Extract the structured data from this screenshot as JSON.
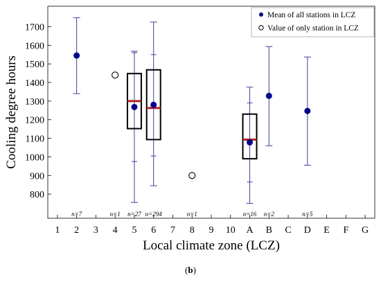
{
  "caption": {
    "prefix": "(",
    "label": "b",
    "suffix": ")"
  },
  "chart_data": {
    "type": "boxplot",
    "ylabel": "Cooling degree hours",
    "xlabel": "Local climate zone (LCZ)",
    "categories": [
      "1",
      "2",
      "3",
      "4",
      "5",
      "6",
      "7",
      "8",
      "9",
      "10",
      "A",
      "B",
      "C",
      "D",
      "E",
      "F",
      "G"
    ],
    "ylim": [
      670,
      1810
    ],
    "yticks": [
      800,
      900,
      1000,
      1100,
      1200,
      1300,
      1400,
      1500,
      1600,
      1700
    ],
    "legend": {
      "position": "top-right",
      "entries": [
        {
          "marker": "filled-circle",
          "label": "Mean of all stations in LCZ"
        },
        {
          "marker": "open-circle",
          "label": "Value of only station in LCZ"
        }
      ]
    },
    "colors": {
      "mean": "#00008b",
      "whisker": "#3f3f9f",
      "median": "#b22222",
      "box": "#000000"
    },
    "groups": [
      {
        "lcz": "2",
        "n": "n=7",
        "mean": 1545,
        "whisker": [
          1340,
          1748
        ]
      },
      {
        "lcz": "4",
        "n": "n=1",
        "single": 1440
      },
      {
        "lcz": "5",
        "n": "n=27",
        "mean": 1268,
        "median": 1300,
        "q1": 1152,
        "q3": 1448,
        "whisker": [
          755,
          1568
        ],
        "ci": [
          975,
          1560
        ]
      },
      {
        "lcz": "6",
        "n": "n=294",
        "mean": 1280,
        "median": 1263,
        "q1": 1093,
        "q3": 1468,
        "whisker": [
          845,
          1725
        ],
        "ci": [
          1005,
          1550
        ]
      },
      {
        "lcz": "8",
        "n": "n=1",
        "single": 900
      },
      {
        "lcz": "A",
        "n": "n=16",
        "mean": 1078,
        "median": 1093,
        "q1": 990,
        "q3": 1230,
        "whisker": [
          750,
          1375
        ],
        "ci": [
          865,
          1290
        ]
      },
      {
        "lcz": "B",
        "n": "n=2",
        "mean": 1328,
        "whisker": [
          1060,
          1593
        ]
      },
      {
        "lcz": "D",
        "n": "n=5",
        "mean": 1247,
        "whisker": [
          955,
          1537
        ]
      }
    ]
  }
}
